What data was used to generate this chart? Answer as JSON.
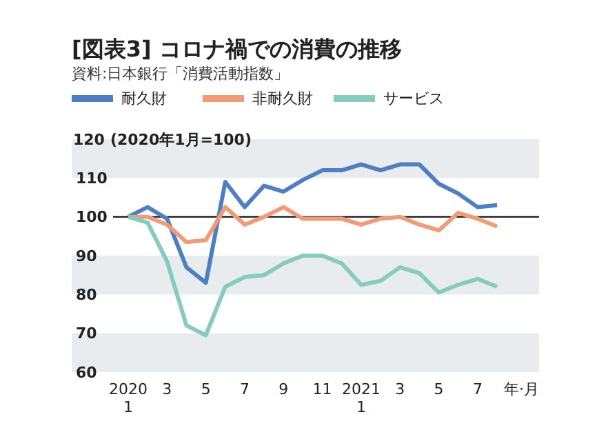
{
  "chart_data": {
    "type": "line",
    "title": "[図表3] コロナ禍での消費の推移",
    "subtitle": "資料:日本銀行「消費活動指数」",
    "ylabel": "(2020年1月=100)",
    "xlabel": "年·月",
    "categories": [
      "2020\n1",
      null,
      "3",
      null,
      "5",
      null,
      "7",
      null,
      "9",
      null,
      "11",
      null,
      "2021\n1",
      null,
      "3",
      null,
      "5",
      null,
      "7",
      null
    ],
    "series": [
      {
        "name": "耐久財",
        "color": "#4f7fc0",
        "values": [
          100,
          102.5,
          99.5,
          87,
          83,
          109,
          102.5,
          108,
          106.5,
          109.5,
          112,
          112,
          113.5,
          112,
          113.5,
          113.5,
          108.5,
          106,
          102.5,
          103
        ]
      },
      {
        "name": "非耐久財",
        "color": "#ee9c7a",
        "values": [
          100,
          100,
          98,
          93.5,
          94,
          102.5,
          98,
          100,
          102.5,
          99.5,
          99.5,
          99.5,
          98,
          99.5,
          100,
          98,
          96.5,
          101,
          99.5,
          97.5
        ]
      },
      {
        "name": "サービス",
        "color": "#86cbbb",
        "values": [
          100,
          98.5,
          88.5,
          72,
          69.5,
          82,
          84.5,
          85,
          88,
          90,
          90,
          88,
          82.5,
          83.5,
          87,
          85.5,
          80.5,
          82.5,
          84,
          82
        ]
      }
    ],
    "ylim": [
      60,
      120
    ],
    "yticks": [
      60,
      70,
      80,
      90,
      100,
      110,
      120
    ],
    "bands": [
      {
        "axis": "y",
        "from": 110,
        "to": 120,
        "color": "#e9ecef"
      },
      {
        "axis": "y",
        "from": 80,
        "to": 90,
        "color": "#e9ecef"
      },
      {
        "axis": "y",
        "from": 60,
        "to": 70,
        "color": "#e9ecef"
      }
    ],
    "ref_lines": [
      {
        "axis": "y",
        "value": 100,
        "color": "#000000"
      }
    ],
    "legend": "top left",
    "grid": false
  }
}
